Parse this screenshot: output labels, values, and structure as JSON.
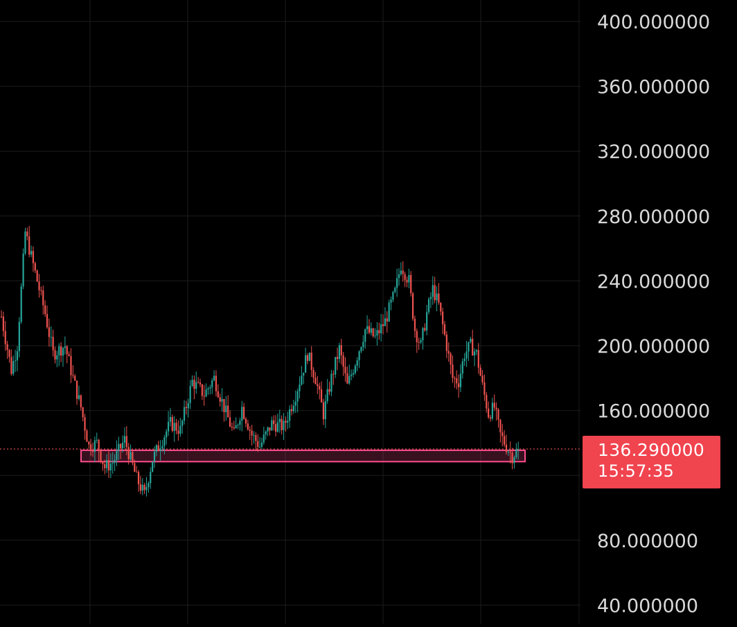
{
  "chart_data": {
    "type": "candlestick",
    "y_axis": {
      "ticks": [
        "40.000000",
        "80.000000",
        "160.000000",
        "200.000000",
        "240.000000",
        "280.000000",
        "320.000000",
        "360.000000",
        "400.000000"
      ],
      "min": 40,
      "max": 400
    },
    "grid": true,
    "colors": {
      "up": "#26a69a",
      "down": "#ef5350",
      "background": "#000000",
      "grid": "#1c1c1c",
      "zone": "#ff4d8d"
    },
    "current_price": {
      "value": 136.29,
      "label": "136.290000",
      "countdown": "15:57:35",
      "color": "#f0444f"
    },
    "support_zone": {
      "low": 128.5,
      "high": 135.5
    },
    "series": [
      {
        "name": "",
        "trend_points": [
          {
            "i": 0,
            "p": 218
          },
          {
            "i": 5,
            "p": 185
          },
          {
            "i": 8,
            "p": 200
          },
          {
            "i": 12,
            "p": 270
          },
          {
            "i": 16,
            "p": 250
          },
          {
            "i": 22,
            "p": 220
          },
          {
            "i": 26,
            "p": 195
          },
          {
            "i": 32,
            "p": 200
          },
          {
            "i": 36,
            "p": 180
          },
          {
            "i": 40,
            "p": 162
          },
          {
            "i": 44,
            "p": 138
          },
          {
            "i": 48,
            "p": 140
          },
          {
            "i": 52,
            "p": 125
          },
          {
            "i": 56,
            "p": 128
          },
          {
            "i": 62,
            "p": 142
          },
          {
            "i": 68,
            "p": 118
          },
          {
            "i": 72,
            "p": 108
          },
          {
            "i": 76,
            "p": 130
          },
          {
            "i": 80,
            "p": 140
          },
          {
            "i": 85,
            "p": 152
          },
          {
            "i": 90,
            "p": 148
          },
          {
            "i": 96,
            "p": 178
          },
          {
            "i": 102,
            "p": 170
          },
          {
            "i": 107,
            "p": 180
          },
          {
            "i": 112,
            "p": 162
          },
          {
            "i": 117,
            "p": 145
          },
          {
            "i": 121,
            "p": 162
          },
          {
            "i": 126,
            "p": 145
          },
          {
            "i": 130,
            "p": 138
          },
          {
            "i": 136,
            "p": 152
          },
          {
            "i": 142,
            "p": 150
          },
          {
            "i": 148,
            "p": 170
          },
          {
            "i": 154,
            "p": 195
          },
          {
            "i": 158,
            "p": 180
          },
          {
            "i": 162,
            "p": 158
          },
          {
            "i": 166,
            "p": 180
          },
          {
            "i": 170,
            "p": 198
          },
          {
            "i": 174,
            "p": 175
          },
          {
            "i": 178,
            "p": 190
          },
          {
            "i": 183,
            "p": 210
          },
          {
            "i": 188,
            "p": 205
          },
          {
            "i": 193,
            "p": 215
          },
          {
            "i": 198,
            "p": 233
          },
          {
            "i": 201,
            "p": 250
          },
          {
            "i": 205,
            "p": 240
          },
          {
            "i": 208,
            "p": 210
          },
          {
            "i": 211,
            "p": 200
          },
          {
            "i": 214,
            "p": 220
          },
          {
            "i": 217,
            "p": 235
          },
          {
            "i": 220,
            "p": 225
          },
          {
            "i": 224,
            "p": 200
          },
          {
            "i": 227,
            "p": 180
          },
          {
            "i": 230,
            "p": 178
          },
          {
            "i": 233,
            "p": 195
          },
          {
            "i": 236,
            "p": 200
          },
          {
            "i": 239,
            "p": 195
          },
          {
            "i": 242,
            "p": 175
          },
          {
            "i": 245,
            "p": 158
          },
          {
            "i": 248,
            "p": 162
          },
          {
            "i": 251,
            "p": 145
          },
          {
            "i": 254,
            "p": 138
          },
          {
            "i": 257,
            "p": 132
          },
          {
            "i": 260,
            "p": 136.29
          }
        ]
      }
    ]
  }
}
